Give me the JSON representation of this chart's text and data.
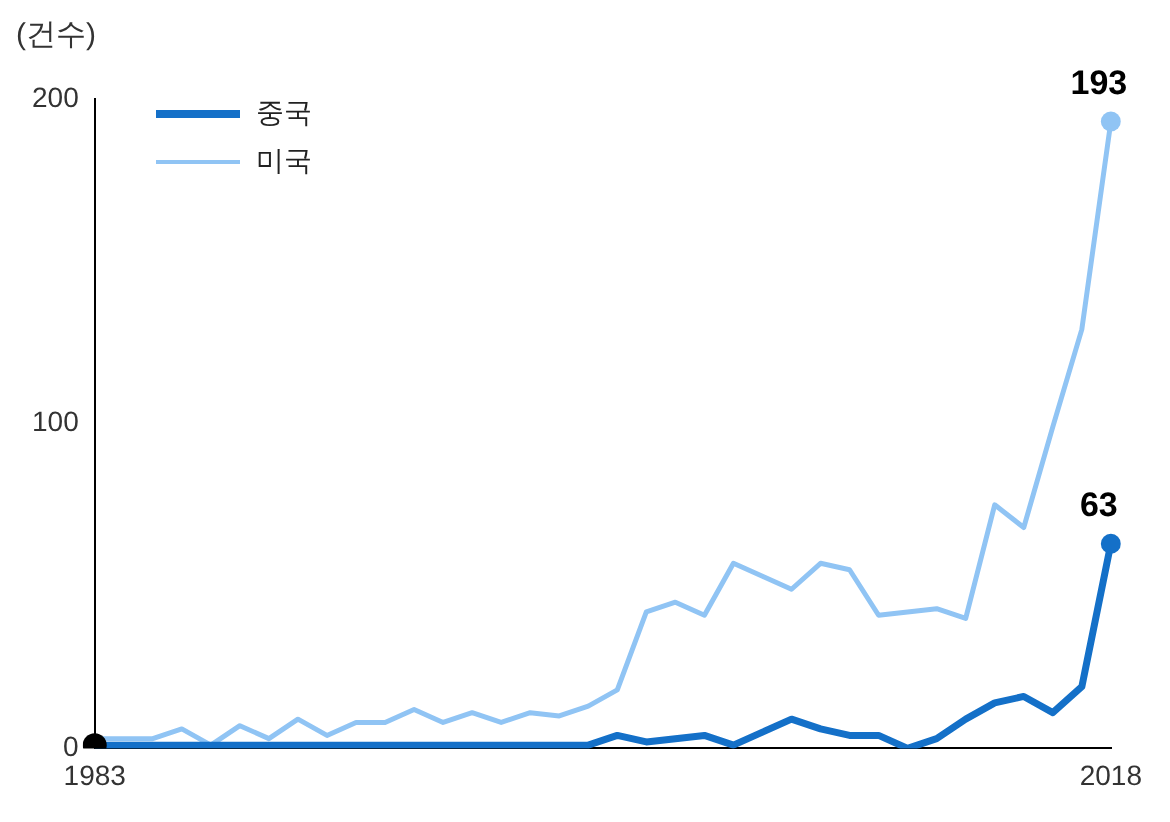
{
  "chart_data": {
    "type": "line",
    "ylabel": "(건수)",
    "categories": [
      "1983",
      null,
      null,
      null,
      null,
      null,
      null,
      null,
      null,
      null,
      null,
      null,
      null,
      null,
      null,
      null,
      null,
      null,
      null,
      null,
      null,
      null,
      null,
      null,
      null,
      null,
      null,
      null,
      null,
      null,
      null,
      null,
      null,
      null,
      null,
      "2018"
    ],
    "series": [
      {
        "name": "중국",
        "color": "#1470c8",
        "values": [
          1,
          1,
          1,
          1,
          1,
          1,
          1,
          1,
          1,
          1,
          1,
          1,
          1,
          1,
          1,
          1,
          1,
          1,
          4,
          2,
          3,
          4,
          1,
          5,
          9,
          6,
          4,
          4,
          0,
          3,
          9,
          14,
          16,
          11,
          19,
          63
        ],
        "value_labels": [
          null,
          null,
          null,
          null,
          null,
          null,
          null,
          null,
          null,
          null,
          null,
          null,
          null,
          null,
          null,
          null,
          null,
          null,
          null,
          null,
          null,
          null,
          null,
          null,
          null,
          null,
          null,
          null,
          null,
          null,
          null,
          null,
          null,
          null,
          null,
          "63"
        ]
      },
      {
        "name": "미국",
        "color": "#90c4f4",
        "values": [
          3,
          3,
          3,
          6,
          1,
          7,
          3,
          9,
          4,
          8,
          8,
          12,
          8,
          11,
          8,
          11,
          10,
          13,
          18,
          42,
          45,
          41,
          57,
          53,
          49,
          57,
          55,
          41,
          42,
          43,
          40,
          75,
          68,
          99,
          129,
          193
        ],
        "value_labels": [
          null,
          null,
          null,
          null,
          null,
          null,
          null,
          null,
          null,
          null,
          null,
          null,
          null,
          null,
          null,
          null,
          null,
          null,
          null,
          null,
          null,
          null,
          null,
          null,
          null,
          null,
          null,
          null,
          null,
          null,
          null,
          null,
          null,
          null,
          null,
          "193"
        ]
      },
      {
        "type": "scatter",
        "color": "#000000",
        "values": [
          1,
          null,
          null,
          null,
          null,
          null,
          null,
          null,
          null,
          null,
          null,
          null,
          null,
          null,
          null,
          null,
          null,
          null,
          null,
          null,
          null,
          null,
          null,
          null,
          null,
          null,
          null,
          null,
          null,
          null,
          null,
          null,
          null,
          null,
          null,
          null
        ]
      }
    ],
    "ylim": [
      0,
      200
    ],
    "yticks": [
      0,
      100,
      200
    ],
    "grid": false,
    "legend": "top left"
  }
}
